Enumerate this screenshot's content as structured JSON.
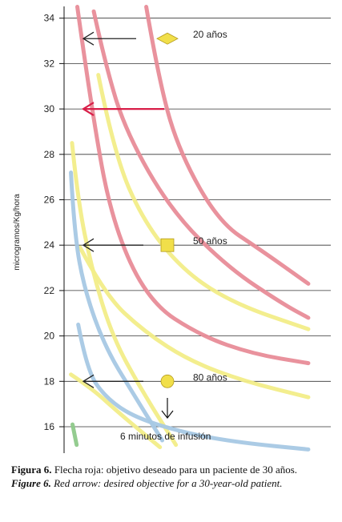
{
  "chart_data": {
    "type": "line",
    "ylabel": "microgramos/Kg/hora",
    "ylim": [
      15,
      34.5
    ],
    "yticks": [
      16,
      18,
      20,
      22,
      24,
      26,
      28,
      30,
      32,
      34
    ],
    "series": [
      {
        "color": "#e88c98",
        "points": [
          [
            -0.92,
            34.5
          ],
          [
            -0.3,
            30
          ],
          [
            0.6,
            25
          ],
          [
            2.2,
            21.5
          ],
          [
            4.5,
            20
          ],
          [
            6.8,
            19.2
          ],
          [
            9.2,
            18.8
          ]
        ]
      },
      {
        "color": "#e88c98",
        "points": [
          [
            2.1,
            34.5
          ],
          [
            2.7,
            31
          ],
          [
            3.6,
            28
          ],
          [
            5.3,
            25
          ],
          [
            7.1,
            23.8
          ],
          [
            9.2,
            22.3
          ]
        ]
      },
      {
        "color": "#e88c98",
        "points": [
          [
            -0.2,
            34.3
          ],
          [
            0.3,
            32
          ],
          [
            1.2,
            29
          ],
          [
            3.2,
            25.5
          ],
          [
            5.7,
            23
          ],
          [
            8.1,
            21.4
          ],
          [
            9.2,
            20.8
          ]
        ]
      },
      {
        "color": "#f2ed88",
        "points": [
          [
            -1.15,
            28.5
          ],
          [
            -0.9,
            26
          ],
          [
            -0.3,
            23
          ],
          [
            0.6,
            20
          ],
          [
            1.9,
            17.6
          ],
          [
            3.4,
            15.2
          ]
        ]
      },
      {
        "color": "#f2ed88",
        "points": [
          [
            0.0,
            31.5
          ],
          [
            0.7,
            28
          ],
          [
            2.0,
            25
          ],
          [
            3.8,
            22.8
          ],
          [
            6.0,
            21.4
          ],
          [
            9.2,
            20.3
          ]
        ]
      },
      {
        "color": "#f2ed88",
        "points": [
          [
            -0.8,
            23.9
          ],
          [
            0.3,
            21.8
          ],
          [
            2.0,
            20.2
          ],
          [
            4.0,
            18.9
          ],
          [
            6.4,
            18.0
          ],
          [
            9.2,
            17.3
          ]
        ]
      },
      {
        "color": "#f2ed88",
        "points": [
          [
            -1.2,
            18.3
          ],
          [
            -0.3,
            17.7
          ],
          [
            0.8,
            16.7
          ],
          [
            2.1,
            15.6
          ],
          [
            2.7,
            15.1
          ]
        ]
      },
      {
        "color": "#a6c8e4",
        "points": [
          [
            -1.2,
            27.2
          ],
          [
            -1.05,
            24.5
          ],
          [
            -0.6,
            22
          ],
          [
            0.3,
            19.5
          ],
          [
            1.5,
            17.5
          ],
          [
            2.8,
            15.4
          ]
        ]
      },
      {
        "color": "#a6c8e4",
        "points": [
          [
            -0.88,
            20.5
          ],
          [
            -0.5,
            18.5
          ],
          [
            0.3,
            17.3
          ],
          [
            1.6,
            16.4
          ],
          [
            3.9,
            15.7
          ],
          [
            6.2,
            15.3
          ],
          [
            9.2,
            15.0
          ]
        ]
      },
      {
        "color": "#8ec98a",
        "points": [
          [
            -1.13,
            16.1
          ],
          [
            -0.95,
            15.2
          ]
        ]
      }
    ],
    "markers": [
      {
        "shape": "diamond",
        "label": "20 años",
        "y": 33.1
      },
      {
        "shape": "square",
        "label": "50 años",
        "y": 24.0
      },
      {
        "shape": "circle",
        "label": "80 años",
        "y": 18.0
      }
    ],
    "arrows": [
      {
        "y": 33.1,
        "color": "#222222"
      },
      {
        "y": 30.0,
        "color": "#d81e48"
      },
      {
        "y": 24.0,
        "color": "#222222"
      },
      {
        "y": 18.0,
        "color": "#222222"
      }
    ],
    "annotation": "6 minutos de infusión"
  },
  "caption": {
    "es_label": "Figura 6.",
    "es_text": "Flecha roja: objetivo deseado para un paciente de 30 años.",
    "en_label": "Figure 6.",
    "en_text": "Red arrow: desired objective for a 30-year-old patient."
  }
}
